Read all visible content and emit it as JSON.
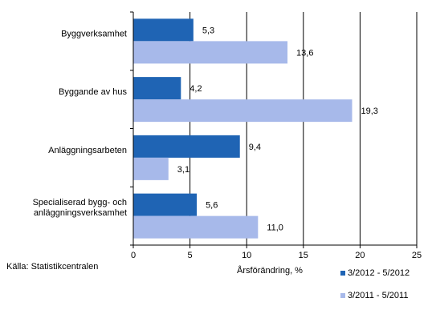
{
  "chart_data": {
    "type": "bar",
    "orientation": "horizontal",
    "categories": [
      [
        "Byggverksamhet"
      ],
      [
        "Byggande av hus"
      ],
      [
        "Anläggningsarbeten"
      ],
      [
        "Specialiserad bygg- och",
        "anläggningsverksamhet"
      ]
    ],
    "series": [
      {
        "name": "3/2012 - 5/2012",
        "values": [
          5.3,
          4.2,
          9.4,
          5.6
        ],
        "labels": [
          "5,3",
          "4,2",
          "9,4",
          "5,6"
        ],
        "color": "#1f64b4"
      },
      {
        "name": "3/2011 - 5/2011",
        "values": [
          13.6,
          19.3,
          3.1,
          11.0
        ],
        "labels": [
          "13,6",
          "19,3",
          "3,1",
          "11,0"
        ],
        "color": "#a7b9ea"
      }
    ],
    "xlabel": "Årsförändring, %",
    "xlim": [
      0,
      25
    ],
    "xticks": [
      0,
      5,
      10,
      15,
      20,
      25
    ],
    "grid": true,
    "legend_position": "bottom-right"
  },
  "source": "Källa: Statistikcentralen"
}
